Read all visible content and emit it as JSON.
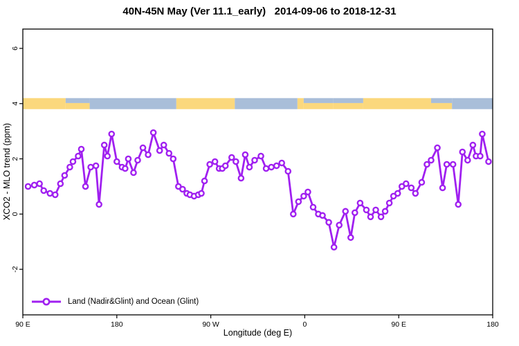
{
  "title": "40N-45N May (Ver 11.1_early)   2014-09-06 to 2018-12-31",
  "chart_data": {
    "type": "line",
    "title": "40N-45N May (Ver 11.1_early)   2014-09-06 to 2018-12-31",
    "xlabel": "Longitude (deg E)",
    "ylabel": "XCO2 - MLO trend (ppm)",
    "grid": false,
    "legend_position": "bottom-left-inside",
    "x_axis": {
      "min": 90,
      "max": 540,
      "ticks": [
        {
          "value": 90,
          "label": "90 E"
        },
        {
          "value": 180,
          "label": "180"
        },
        {
          "value": 270,
          "label": "90 W"
        },
        {
          "value": 360,
          "label": "0"
        },
        {
          "value": 450,
          "label": "90 E"
        },
        {
          "value": 540,
          "label": "180"
        }
      ]
    },
    "y_axis": {
      "min": -3.65,
      "max": 6.7,
      "ticks": [
        {
          "value": -2,
          "label": "-2"
        },
        {
          "value": 0,
          "label": "0"
        },
        {
          "value": 2,
          "label": "2"
        },
        {
          "value": 4,
          "label": "4"
        },
        {
          "value": 6,
          "label": "6"
        }
      ]
    },
    "legend": [
      {
        "label": "Land (Nadir&Glint) and Ocean (Glint)",
        "color": "#A020F0",
        "marker": "open-circle"
      }
    ],
    "surface_type_band": {
      "description": "land/ocean strip drawn at y = 4, spanning 3.8 to 4.2 ppm",
      "y_center": 4,
      "y_half_height": 0.2,
      "land_color": "#FBD87D",
      "ocean_color": "#A9BED9",
      "segments": [
        {
          "from": 90,
          "to": 131,
          "type": "land"
        },
        {
          "from": 131,
          "to": 154,
          "type": "mix"
        },
        {
          "from": 154,
          "to": 237,
          "type": "ocean"
        },
        {
          "from": 237,
          "to": 293,
          "type": "land"
        },
        {
          "from": 293,
          "to": 353,
          "type": "ocean"
        },
        {
          "from": 353,
          "to": 359,
          "type": "land"
        },
        {
          "from": 359,
          "to": 387,
          "type": "mix"
        },
        {
          "from": 387,
          "to": 416,
          "type": "mix"
        },
        {
          "from": 416,
          "to": 481,
          "type": "land"
        },
        {
          "from": 481,
          "to": 501,
          "type": "mix"
        },
        {
          "from": 501,
          "to": 540,
          "type": "ocean"
        }
      ]
    },
    "series": [
      {
        "name": "Land (Nadir&Glint) and Ocean (Glint)",
        "color": "#A020F0",
        "marker": "open-circle",
        "points": [
          [
            95,
            1.0
          ],
          [
            101,
            1.05
          ],
          [
            106,
            1.1
          ],
          [
            110,
            0.85
          ],
          [
            116,
            0.75
          ],
          [
            121,
            0.7
          ],
          [
            126,
            1.1
          ],
          [
            130,
            1.4
          ],
          [
            135,
            1.7
          ],
          [
            138,
            1.9
          ],
          [
            143,
            2.1
          ],
          [
            146,
            2.35
          ],
          [
            150,
            1.0
          ],
          [
            155,
            1.7
          ],
          [
            160,
            1.75
          ],
          [
            163,
            0.35
          ],
          [
            168,
            2.5
          ],
          [
            171,
            2.1
          ],
          [
            175,
            2.9
          ],
          [
            180,
            1.9
          ],
          [
            185,
            1.7
          ],
          [
            188,
            1.65
          ],
          [
            191,
            2.0
          ],
          [
            196,
            1.5
          ],
          [
            200,
            1.95
          ],
          [
            205,
            2.4
          ],
          [
            210,
            2.15
          ],
          [
            215,
            2.95
          ],
          [
            221,
            2.3
          ],
          [
            225,
            2.5
          ],
          [
            230,
            2.2
          ],
          [
            234,
            2.0
          ],
          [
            239,
            1.0
          ],
          [
            243,
            0.9
          ],
          [
            247,
            0.75
          ],
          [
            250,
            0.7
          ],
          [
            254,
            0.65
          ],
          [
            258,
            0.7
          ],
          [
            261,
            0.75
          ],
          [
            264,
            1.2
          ],
          [
            269,
            1.8
          ],
          [
            274,
            1.9
          ],
          [
            278,
            1.65
          ],
          [
            281,
            1.65
          ],
          [
            284,
            1.75
          ],
          [
            290,
            2.05
          ],
          [
            294,
            1.9
          ],
          [
            299,
            1.3
          ],
          [
            303,
            2.15
          ],
          [
            307,
            1.7
          ],
          [
            312,
            1.95
          ],
          [
            318,
            2.1
          ],
          [
            323,
            1.65
          ],
          [
            328,
            1.7
          ],
          [
            333,
            1.75
          ],
          [
            338,
            1.85
          ],
          [
            344,
            1.55
          ],
          [
            349,
            0.0
          ],
          [
            354,
            0.45
          ],
          [
            359,
            0.65
          ],
          [
            363,
            0.8
          ],
          [
            368,
            0.25
          ],
          [
            373,
            0.0
          ],
          [
            377,
            -0.05
          ],
          [
            383,
            -0.3
          ],
          [
            388,
            -1.2
          ],
          [
            393,
            -0.4
          ],
          [
            399,
            0.1
          ],
          [
            404,
            -0.85
          ],
          [
            408,
            0.05
          ],
          [
            413,
            0.4
          ],
          [
            419,
            0.15
          ],
          [
            423,
            -0.1
          ],
          [
            428,
            0.15
          ],
          [
            433,
            -0.1
          ],
          [
            437,
            0.1
          ],
          [
            441,
            0.4
          ],
          [
            445,
            0.65
          ],
          [
            449,
            0.75
          ],
          [
            453,
            1.0
          ],
          [
            457,
            1.1
          ],
          [
            462,
            0.95
          ],
          [
            466,
            0.75
          ],
          [
            472,
            1.15
          ],
          [
            477,
            1.8
          ],
          [
            481,
            1.95
          ],
          [
            487,
            2.4
          ],
          [
            492,
            0.95
          ],
          [
            496,
            1.8
          ],
          [
            502,
            1.8
          ],
          [
            507,
            0.35
          ],
          [
            511,
            2.25
          ],
          [
            516,
            1.95
          ],
          [
            521,
            2.5
          ],
          [
            524,
            2.1
          ],
          [
            528,
            2.1
          ],
          [
            530,
            2.9
          ],
          [
            536,
            1.9
          ]
        ]
      }
    ]
  }
}
